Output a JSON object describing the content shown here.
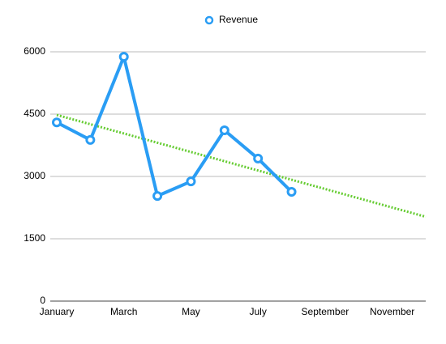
{
  "chart_data": {
    "type": "line",
    "categories": [
      "January",
      null,
      "March",
      null,
      "May",
      null,
      "July",
      null,
      "September",
      null,
      "November",
      null
    ],
    "series": [
      {
        "name": "Revenue",
        "color": "#2a9df4",
        "values": [
          4300,
          3880,
          5880,
          2530,
          2880,
          4110,
          3430,
          2630,
          null,
          null,
          null,
          null
        ]
      }
    ],
    "trendline": {
      "color": "#66cc33",
      "values": [
        4480,
        2030
      ]
    },
    "ylim": [
      0,
      6000
    ],
    "yticks": [
      0,
      1500,
      3000,
      4500,
      6000
    ],
    "grid": true,
    "legend": "top"
  }
}
